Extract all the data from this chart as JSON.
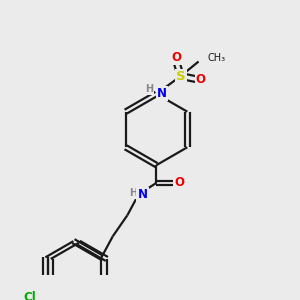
{
  "bg_color": "#ebebeb",
  "bond_color": "#1a1a1a",
  "bond_lw": 1.6,
  "atom_colors": {
    "N": "#0000ee",
    "O": "#ee0000",
    "S": "#cccc00",
    "Cl": "#00aa00",
    "C": "#1a1a1a",
    "H": "#888888"
  },
  "fs": 8.5,
  "figsize": [
    3.0,
    3.0
  ],
  "dpi": 100
}
